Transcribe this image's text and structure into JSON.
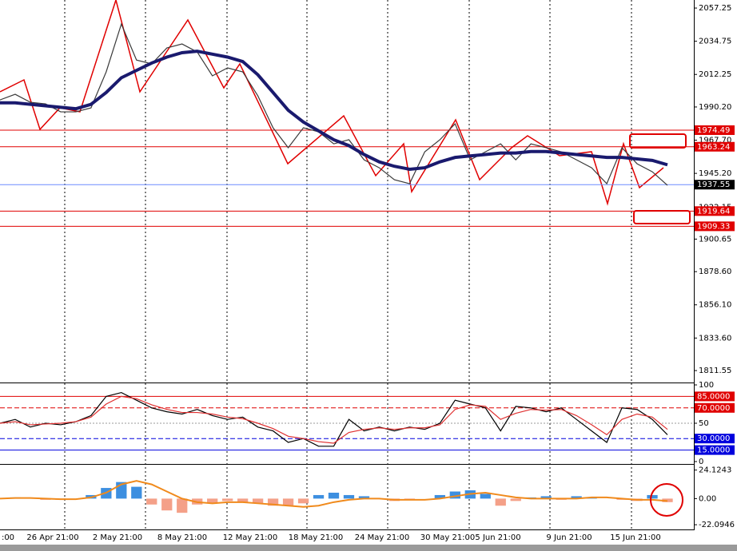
{
  "time_labels": [
    ":00",
    "26 Apr 21:00",
    "2 May 21:00",
    "8 May 21:00",
    "12 May 21:00",
    "18 May 21:00",
    "24 May 21:00",
    "30 May 21:00",
    "5 Jun 21:00",
    "9 Jun 21:00",
    "15 Jun 21:00"
  ],
  "chart_data": [
    {
      "type": "line",
      "ylim": [
        1804,
        2062.7
      ],
      "yticks": [
        2057.25,
        2034.75,
        2012.25,
        {
          "value": 1990.2,
          "label": "1990.20"
        },
        {
          "value": 1967.7,
          "label": "1967.70"
        },
        {
          "value": 1945.2,
          "label": "1945.20"
        },
        1922.15,
        1900.65,
        {
          "value": 1878.6,
          "label": "1878.60"
        },
        {
          "value": 1856.1,
          "label": "1856.10"
        },
        {
          "value": 1833.6,
          "label": "1833.60"
        },
        1811.55
      ],
      "series": [
        {
          "color": "#3a3a3a",
          "values": [
            1995,
            1998.8,
            1993.4,
            1992.3,
            1986.9,
            1986.9,
            1989.6,
            2014,
            2046.4,
            2022,
            2019.4,
            2030.2,
            2032.9,
            2027.5,
            2011.3,
            2016.7,
            2014,
            1997.7,
            1976.1,
            1962.6,
            1976.1,
            1973.4,
            1965.2,
            1968,
            1954.4,
            1949,
            1940.9,
            1938.2,
            1959.8,
            1968,
            1978.8,
            1954.4,
            1959.8,
            1965.2,
            1954.4,
            1965.2,
            1962.6,
            1959.8,
            1954.4,
            1949,
            1938.2,
            1962.6,
            1951.7,
            1946.3,
            1937.1
          ]
        },
        {
          "color": "#1a1a6e",
          "values": [
            1993,
            1993,
            1992,
            1991,
            1990,
            1989,
            1992,
            2000,
            2010,
            2015,
            2020,
            2024,
            2027,
            2028,
            2026,
            2024,
            2021,
            2012,
            2000,
            1988,
            1980,
            1974,
            1968,
            1964,
            1958,
            1953,
            1950,
            1948,
            1949,
            1953,
            1956,
            1957,
            1958,
            1959,
            1959,
            1960,
            1960,
            1959,
            1958,
            1957,
            1956,
            1956,
            1955,
            1954,
            1951
          ]
        }
      ],
      "levels": [
        {
          "value": 1974.49,
          "color": "#e00000"
        },
        {
          "value": 1963.24,
          "color": "#e00000"
        },
        {
          "value": 1937.55,
          "color": "#6b8cff"
        },
        {
          "value": 1919.64,
          "color": "#e00000"
        },
        {
          "value": 1909.33,
          "color": "#e00000"
        }
      ]
    },
    {
      "type": "line",
      "ylim": [
        0,
        100
      ],
      "yticks": [
        100,
        50,
        0
      ],
      "series": [
        {
          "color": "#000000",
          "values": [
            50,
            55,
            45,
            50,
            48,
            52,
            60,
            85,
            90,
            80,
            70,
            65,
            62,
            68,
            60,
            55,
            58,
            45,
            40,
            25,
            30,
            20,
            20,
            55,
            40,
            45,
            40,
            45,
            42,
            50,
            80,
            75,
            70,
            40,
            72,
            70,
            65,
            70,
            55,
            40,
            25,
            70,
            68,
            55,
            35
          ]
        },
        {
          "color": "#e03030",
          "values": [
            50,
            52,
            48,
            49,
            50,
            52,
            58,
            75,
            85,
            82,
            74,
            68,
            64,
            64,
            62,
            58,
            56,
            50,
            43,
            33,
            30,
            26,
            24,
            38,
            42,
            44,
            42,
            44,
            44,
            48,
            68,
            74,
            72,
            55,
            63,
            68,
            67,
            68,
            60,
            48,
            35,
            55,
            62,
            58,
            42
          ]
        }
      ],
      "levels": [
        {
          "value": 85,
          "label": "85.0000",
          "color": "#e00000"
        },
        {
          "value": 70,
          "label": "70.0000",
          "color": "#e00000"
        },
        {
          "value": 30,
          "label": "30.0000",
          "color": "#0000dd"
        },
        {
          "value": 15,
          "label": "15.0000",
          "color": "#0000dd"
        }
      ]
    },
    {
      "type": "bar",
      "ylim": [
        -25.4,
        29.3
      ],
      "yticks": [
        24.1243,
        {
          "value": 0,
          "label": "0.00"
        },
        -22.0946
      ],
      "colors": {
        "up": "#3d8fe0",
        "down": "#f4a088",
        "signal": "#f08a1c"
      },
      "values": [
        0.5,
        1,
        0,
        -1,
        -1,
        0,
        3,
        9,
        14,
        10,
        -5,
        -10,
        -12,
        -5,
        -4,
        -2,
        -3,
        -4,
        -6,
        -6,
        -4,
        3,
        5,
        3,
        2,
        0,
        -2,
        -1,
        0,
        3,
        6,
        7,
        4,
        -6,
        -2,
        1,
        2,
        -1,
        2,
        1,
        0,
        -1,
        -2,
        3,
        -3
      ],
      "signal": [
        0,
        0.5,
        0.5,
        0,
        -0.5,
        -0.5,
        1,
        5,
        12,
        15,
        12,
        6,
        0,
        -3,
        -4,
        -3,
        -3,
        -4,
        -5,
        -6,
        -7,
        -6,
        -3,
        -1,
        0,
        0,
        -1,
        -1,
        -1,
        0,
        2,
        4,
        5,
        3,
        1,
        0,
        0,
        0,
        0,
        1,
        1,
        0,
        -1,
        -1,
        -2
      ]
    }
  ]
}
